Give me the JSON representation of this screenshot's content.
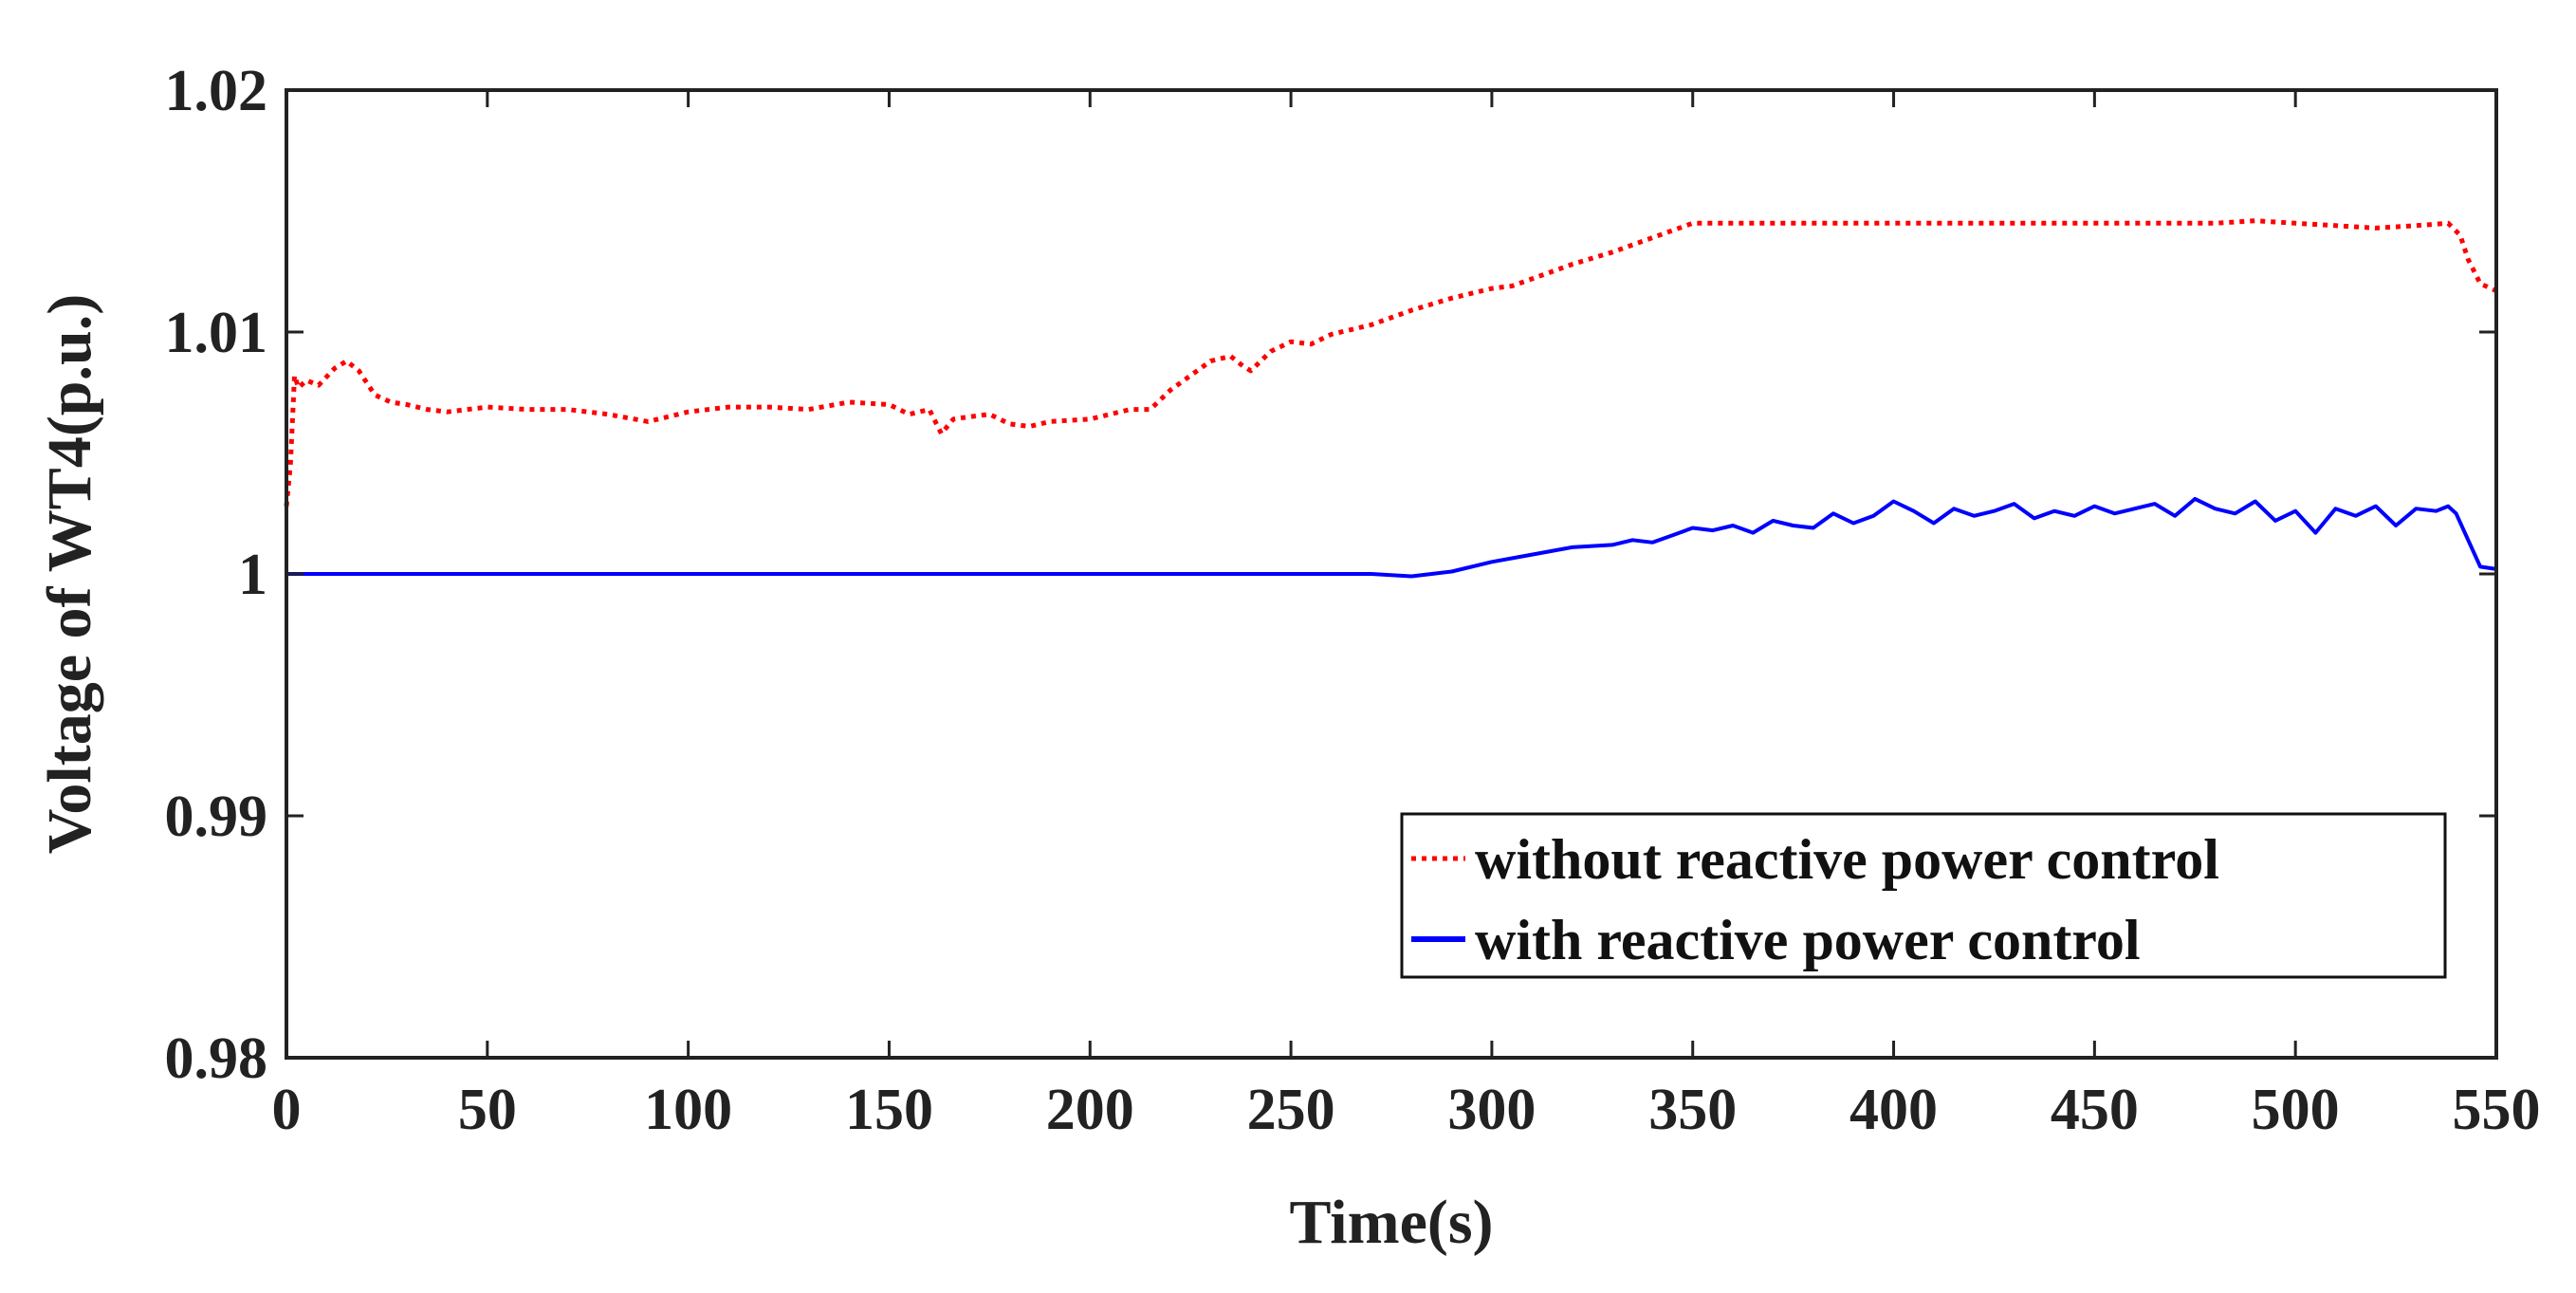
{
  "chart_data": {
    "type": "line",
    "title": "",
    "xlabel": "Time(s)",
    "ylabel": "Voltage of WT4(p.u.)",
    "xlim": [
      0,
      550
    ],
    "ylim": [
      0.98,
      1.02
    ],
    "xticks": [
      0,
      50,
      100,
      150,
      200,
      250,
      300,
      350,
      400,
      450,
      500,
      550
    ],
    "xtick_labels": [
      "0",
      "50",
      "100",
      "150",
      "200",
      "250",
      "300",
      "350",
      "400",
      "450",
      "500",
      "550"
    ],
    "yticks": [
      0.98,
      0.99,
      1.0,
      1.01,
      1.02
    ],
    "ytick_labels": [
      "0.98",
      "0.99",
      "1",
      "1.01",
      "1.02"
    ],
    "grid": false,
    "legend_position": "bottom-right",
    "series": [
      {
        "name": "without reactive power control",
        "color": "#ff0000",
        "style": "dotted",
        "x": [
          0,
          1,
          2,
          3,
          5,
          8,
          12,
          15,
          18,
          22,
          26,
          30,
          35,
          40,
          50,
          60,
          70,
          80,
          90,
          100,
          110,
          120,
          130,
          140,
          150,
          155,
          160,
          163,
          166,
          170,
          175,
          180,
          185,
          190,
          200,
          205,
          210,
          215,
          220,
          225,
          230,
          235,
          238,
          240,
          245,
          250,
          255,
          260,
          270,
          280,
          290,
          300,
          305,
          310,
          320,
          330,
          340,
          350,
          360,
          380,
          400,
          420,
          440,
          460,
          480,
          490,
          500,
          510,
          520,
          530,
          538,
          541,
          543,
          546,
          550
        ],
        "y": [
          1.0028,
          1.0045,
          1.0082,
          1.0077,
          1.008,
          1.0078,
          1.0085,
          1.0088,
          1.0084,
          1.0074,
          1.0071,
          1.007,
          1.0068,
          1.0067,
          1.0069,
          1.0068,
          1.0068,
          1.0066,
          1.0063,
          1.0067,
          1.0069,
          1.0069,
          1.0068,
          1.0071,
          1.007,
          1.0066,
          1.0068,
          1.0058,
          1.0064,
          1.0065,
          1.0066,
          1.0062,
          1.0061,
          1.0063,
          1.0064,
          1.0066,
          1.0068,
          1.0068,
          1.0076,
          1.0082,
          1.0088,
          1.009,
          1.0086,
          1.0084,
          1.0092,
          1.0096,
          1.0095,
          1.0099,
          1.0103,
          1.0109,
          1.0114,
          1.0118,
          1.0119,
          1.0122,
          1.0128,
          1.0133,
          1.0139,
          1.0145,
          1.0145,
          1.0145,
          1.0145,
          1.0145,
          1.0145,
          1.0145,
          1.0145,
          1.0146,
          1.0145,
          1.0144,
          1.0143,
          1.0144,
          1.0145,
          1.014,
          1.013,
          1.012,
          1.0117
        ]
      },
      {
        "name": "with reactive power control",
        "color": "#0000ff",
        "style": "solid",
        "x": [
          0,
          50,
          100,
          150,
          200,
          250,
          270,
          280,
          285,
          290,
          300,
          310,
          320,
          330,
          335,
          340,
          345,
          350,
          355,
          360,
          365,
          370,
          375,
          380,
          385,
          390,
          395,
          400,
          405,
          410,
          415,
          420,
          425,
          430,
          435,
          440,
          445,
          450,
          455,
          460,
          465,
          470,
          475,
          480,
          485,
          490,
          495,
          500,
          505,
          510,
          515,
          520,
          525,
          530,
          535,
          538,
          540,
          543,
          546,
          550
        ],
        "y": [
          1.0,
          1.0,
          1.0,
          1.0,
          1.0,
          1.0,
          1.0,
          0.9999,
          1.0,
          1.0001,
          1.0005,
          1.0008,
          1.0011,
          1.0012,
          1.0014,
          1.0013,
          1.0016,
          1.0019,
          1.0018,
          1.002,
          1.0017,
          1.0022,
          1.002,
          1.0019,
          1.0025,
          1.0021,
          1.0024,
          1.003,
          1.0026,
          1.0021,
          1.0027,
          1.0024,
          1.0026,
          1.0029,
          1.0023,
          1.0026,
          1.0024,
          1.0028,
          1.0025,
          1.0027,
          1.0029,
          1.0024,
          1.0031,
          1.0027,
          1.0025,
          1.003,
          1.0022,
          1.0026,
          1.0017,
          1.0027,
          1.0024,
          1.0028,
          1.002,
          1.0027,
          1.0026,
          1.0028,
          1.0025,
          1.0014,
          1.0003,
          1.0002
        ]
      }
    ]
  }
}
